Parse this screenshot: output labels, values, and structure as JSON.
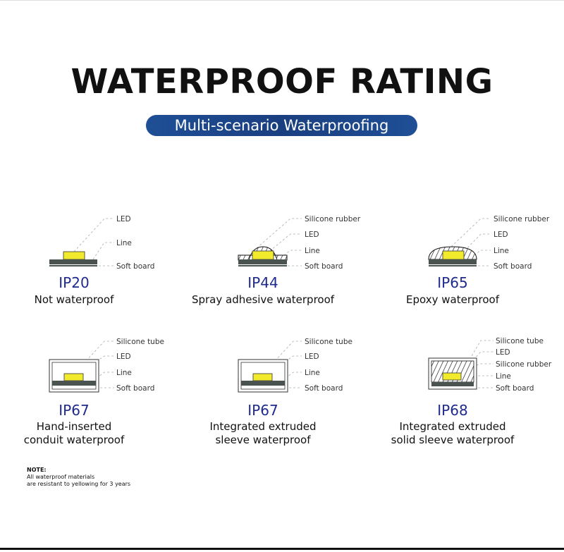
{
  "header": {
    "title": "WATERPROOF RATING",
    "subtitle": "Multi-scenario Waterproofing"
  },
  "colors": {
    "accent": "#1f4f96",
    "rating_text": "#1e2a8c",
    "led": "#f2ea2c",
    "board": "#4a5350"
  },
  "items": [
    {
      "rating": "IP20",
      "desc1": "Not waterproof",
      "desc2": "",
      "labels": [
        "LED",
        "Line",
        "Soft board"
      ]
    },
    {
      "rating": "IP44",
      "desc1": "Spray adhesive waterproof",
      "desc2": "",
      "labels": [
        "Silicone rubber",
        "LED",
        "Line",
        "Soft board"
      ]
    },
    {
      "rating": "IP65",
      "desc1": "Epoxy waterproof",
      "desc2": "",
      "labels": [
        "Silicone rubber",
        "LED",
        "Line",
        "Soft board"
      ]
    },
    {
      "rating": "IP67",
      "desc1": "Hand-inserted",
      "desc2": "conduit waterproof",
      "labels": [
        "Silicone tube",
        "LED",
        "Line",
        "Soft board"
      ]
    },
    {
      "rating": "IP67",
      "desc1": "Integrated extruded",
      "desc2": "sleeve waterproof",
      "labels": [
        "Silicone tube",
        "LED",
        "Line",
        "Soft board"
      ]
    },
    {
      "rating": "IP68",
      "desc1": "Integrated extruded",
      "desc2": "solid sleeve waterproof",
      "labels": [
        "Silicone tube",
        "LED",
        "Silicone rubber",
        "Line",
        "Soft board"
      ]
    }
  ],
  "note": {
    "heading": "NOTE:",
    "line1": "All waterproof materials",
    "line2": "are resistant to yellowing for 3 years"
  }
}
